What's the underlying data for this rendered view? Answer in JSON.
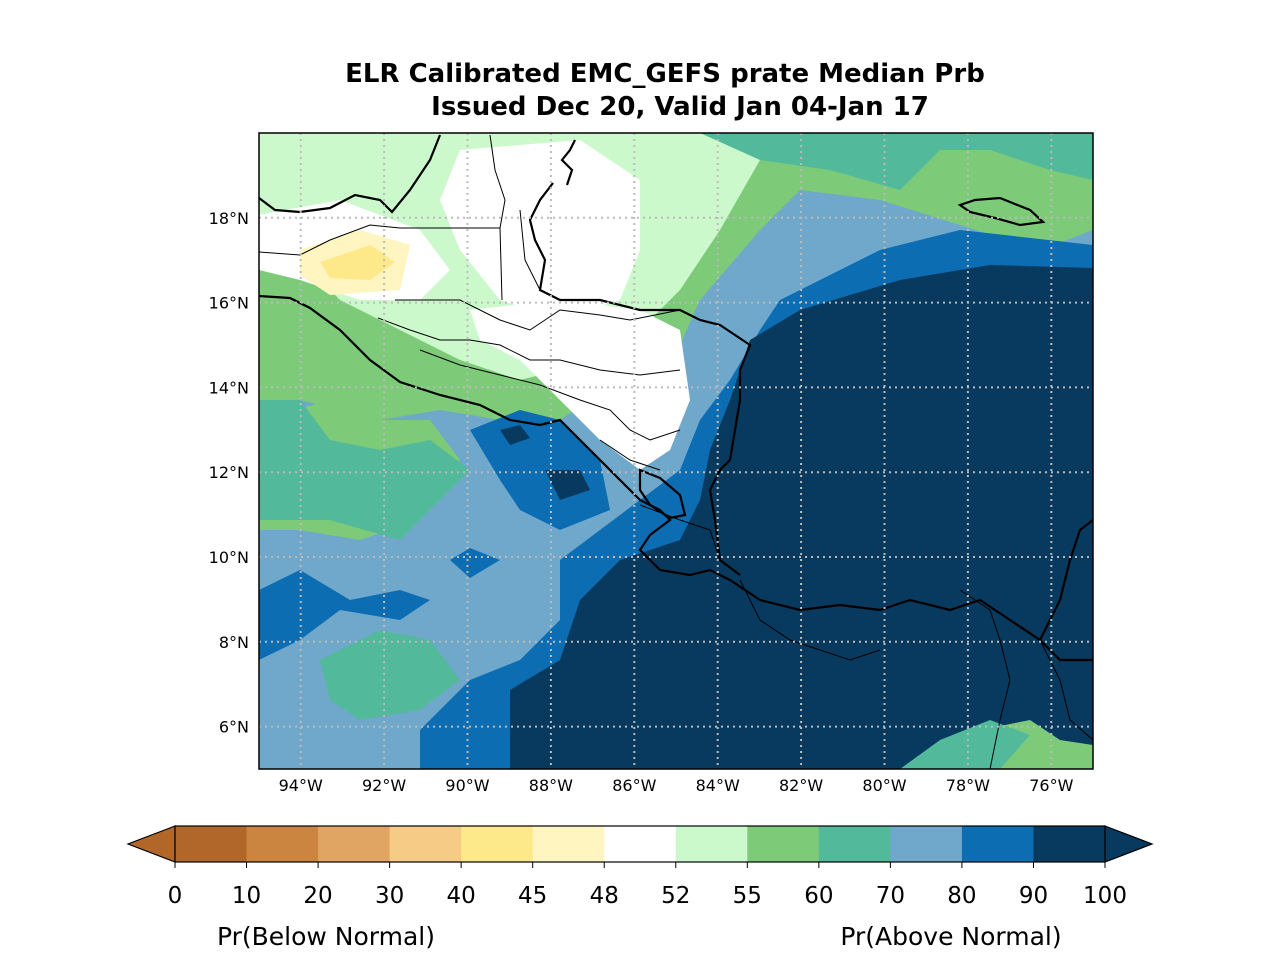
{
  "title": {
    "line1": "ELR Calibrated EMC_GEFS prate Median Prb",
    "line2": "Issued Dec 20, Valid Jan 04-Jan 17"
  },
  "map": {
    "lon_range": [
      -95.0,
      -75.0
    ],
    "lat_range": [
      5.0,
      20.0
    ],
    "gridlines": "dotted",
    "lon_ticks": [
      {
        "value": -94,
        "label": "94°W"
      },
      {
        "value": -92,
        "label": "92°W"
      },
      {
        "value": -90,
        "label": "90°W"
      },
      {
        "value": -88,
        "label": "88°W"
      },
      {
        "value": -86,
        "label": "86°W"
      },
      {
        "value": -84,
        "label": "84°W"
      },
      {
        "value": -82,
        "label": "82°W"
      },
      {
        "value": -80,
        "label": "80°W"
      },
      {
        "value": -78,
        "label": "78°W"
      },
      {
        "value": -76,
        "label": "76°W"
      }
    ],
    "lat_ticks": [
      {
        "value": 18,
        "label": "18°N"
      },
      {
        "value": 16,
        "label": "16°N"
      },
      {
        "value": 14,
        "label": "14°N"
      },
      {
        "value": 12,
        "label": "12°N"
      },
      {
        "value": 10,
        "label": "10°N"
      },
      {
        "value": 8,
        "label": "8°N"
      },
      {
        "value": 6,
        "label": "6°N"
      }
    ]
  },
  "colorbar": {
    "ticks": [
      "0",
      "10",
      "20",
      "30",
      "40",
      "45",
      "48",
      "52",
      "55",
      "60",
      "70",
      "80",
      "90",
      "100"
    ],
    "colors": [
      "#b2672a",
      "#cc8540",
      "#e0a463",
      "#f5cb85",
      "#fde98a",
      "#fff5c0",
      "#ffffff",
      "#ccf9cc",
      "#7dca78",
      "#52b99a",
      "#6fa8cb",
      "#0c6db2",
      "#073a5e"
    ],
    "extend": "both",
    "label_left": "Pr(Below Normal)",
    "label_right": "Pr(Above Normal)"
  }
}
